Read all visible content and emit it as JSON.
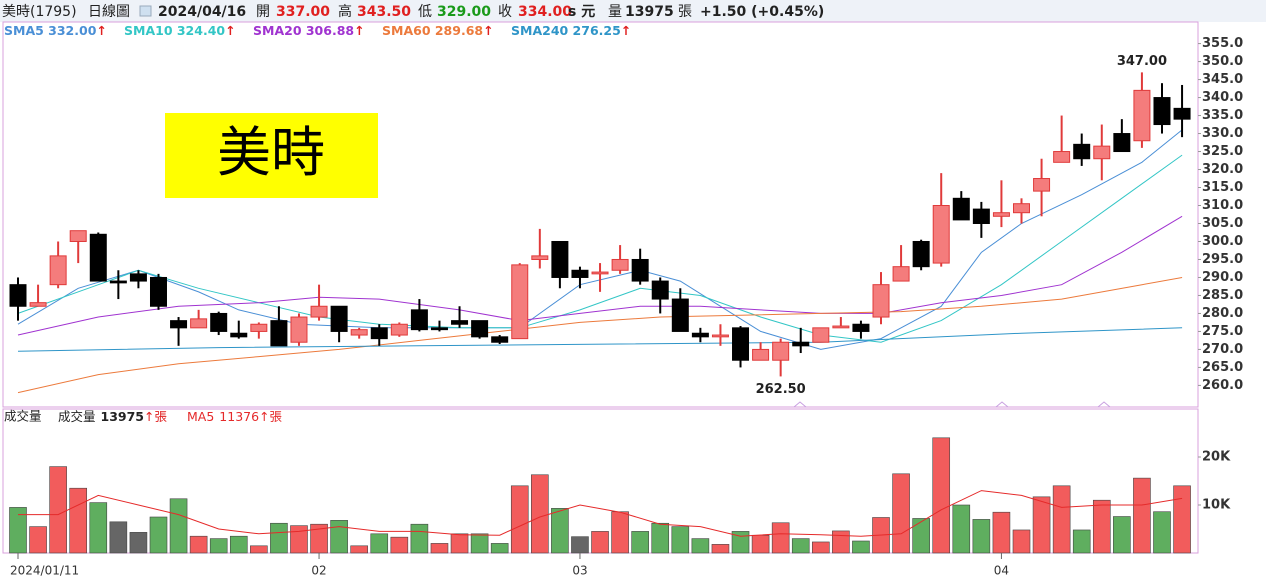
{
  "header": {
    "stock": "美時(1795)",
    "period": "日線圖",
    "date": "2024/04/16",
    "open_label": "開",
    "open": "337.00",
    "high_label": "高",
    "high": "343.50",
    "low_label": "低",
    "low": "329.00",
    "close_label": "收",
    "close": "334.00",
    "unit": "s 元",
    "volume_label": "量",
    "volume": "13975",
    "volume_unit": "張",
    "change": "+1.50 (+0.45%)"
  },
  "chart_data": [
    {
      "type": "candlestick",
      "watermark": "美時",
      "open": [
        288,
        282,
        288,
        300,
        302,
        289,
        291,
        290,
        278,
        276,
        280,
        274.5,
        275,
        278,
        272,
        279,
        282,
        274,
        276,
        274,
        281,
        276,
        278,
        278,
        273.5,
        273,
        295,
        300,
        292,
        291,
        292,
        295,
        289,
        284,
        274.5,
        273.5,
        276,
        267,
        267,
        272,
        272,
        276,
        277,
        279,
        289,
        300,
        294,
        312,
        309,
        307,
        308,
        314,
        322,
        327,
        323,
        330,
        328,
        340,
        337
      ],
      "high": [
        290,
        288,
        300,
        303,
        302.5,
        292,
        292,
        291,
        279,
        281,
        280.5,
        278,
        277.5,
        282,
        280,
        288,
        282,
        276,
        277,
        277.5,
        284,
        278,
        282,
        278,
        274,
        294,
        303.5,
        300,
        293,
        294,
        299,
        298,
        290,
        287,
        276,
        277,
        276.5,
        272,
        273,
        276,
        276,
        279,
        278,
        291.5,
        299,
        300.5,
        319,
        314,
        311,
        317,
        312,
        323,
        335,
        330,
        332.5,
        334,
        347,
        344,
        343.5
      ],
      "low": [
        278,
        282,
        287,
        294,
        289,
        284,
        287,
        281,
        271,
        276,
        274,
        273,
        273,
        271,
        271,
        278,
        272,
        273,
        271,
        273.5,
        275,
        275,
        276,
        273,
        271.5,
        273,
        292.5,
        287,
        287,
        286,
        291,
        288,
        280,
        275,
        272,
        271,
        265,
        267,
        262.5,
        269,
        272,
        276,
        273,
        277,
        289,
        292,
        293,
        306,
        301,
        304,
        305,
        307,
        322,
        321,
        317,
        325,
        326,
        330,
        329
      ],
      "close": [
        282,
        283,
        296,
        303,
        289,
        288.5,
        289,
        282,
        276,
        278.5,
        275,
        273.5,
        277,
        271,
        279,
        282,
        275,
        275.5,
        273,
        277,
        275.5,
        275.5,
        277,
        273.5,
        272,
        293.5,
        296,
        290,
        290,
        291.5,
        295,
        289,
        284,
        275,
        273.5,
        274,
        267,
        270,
        272,
        271,
        276,
        276.5,
        275,
        288,
        293,
        293,
        310,
        306,
        305,
        308,
        310.5,
        317.5,
        325,
        323,
        326.5,
        325,
        342,
        332.5,
        334
      ],
      "up_color": "#f47c7c",
      "up_edge": "#e03a3a",
      "down_color": "#000000",
      "series": [
        {
          "name": "SMA5",
          "legend": "SMA5 332.00",
          "trend": "↑",
          "color": "#4a8fd6",
          "x": [
            0,
            3,
            6,
            9,
            11,
            14,
            18,
            22,
            25,
            28,
            31,
            33,
            35,
            37,
            40,
            43,
            46,
            48,
            50,
            53,
            56,
            58
          ],
          "values": [
            277,
            287,
            292,
            286,
            281,
            277,
            276,
            276,
            276,
            288,
            292,
            289,
            282,
            275,
            270,
            273,
            282,
            297,
            305,
            313,
            322,
            331
          ]
        },
        {
          "name": "SMA10",
          "legend": "SMA10 324.40",
          "trend": "↑",
          "color": "#33c6c6",
          "x": [
            0,
            4,
            6,
            9,
            12,
            15,
            18,
            22,
            25,
            28,
            31,
            34,
            37,
            40,
            43,
            46,
            49,
            52,
            55,
            58
          ],
          "values": [
            280,
            288,
            292,
            287,
            283,
            279,
            277,
            276,
            276,
            281,
            287,
            285,
            279,
            274,
            272,
            278,
            288,
            300,
            312,
            324
          ]
        },
        {
          "name": "SMA20",
          "legend": "SMA20 306.88",
          "trend": "↑",
          "color": "#a033d0",
          "x": [
            0,
            4,
            8,
            12,
            15,
            18,
            22,
            25,
            28,
            31,
            34,
            37,
            40,
            43,
            46,
            49,
            52,
            55,
            58
          ],
          "values": [
            274,
            279,
            282,
            283,
            284.5,
            284,
            281,
            278,
            280,
            282,
            282,
            281,
            280,
            280,
            283,
            285,
            288,
            297,
            307
          ]
        },
        {
          "name": "SMA60",
          "legend": "SMA60 289.68",
          "trend": "↑",
          "color": "#ec7a3c",
          "x": [
            0,
            4,
            8,
            12,
            16,
            20,
            24,
            28,
            32,
            36,
            40,
            44,
            48,
            52,
            56,
            58
          ],
          "values": [
            258,
            263,
            266,
            268,
            270,
            272.5,
            275,
            277.5,
            279,
            279.5,
            280,
            280.5,
            282,
            284,
            288,
            290
          ]
        },
        {
          "name": "SMA240",
          "legend": "SMA240 276.25",
          "trend": "↑",
          "color": "#2f95c8",
          "x": [
            0,
            10,
            20,
            30,
            40,
            50,
            58
          ],
          "values": [
            269.5,
            270.5,
            271,
            271.5,
            272,
            274.5,
            276
          ]
        }
      ],
      "annotations": [
        {
          "text": "347.00",
          "x": 56,
          "value": 347
        },
        {
          "text": "262.50",
          "x": 38,
          "value": 262.5
        }
      ],
      "ylim": [
        254,
        361
      ],
      "yticks": [
        {
          "value": 260,
          "label": "260.0"
        },
        {
          "value": 265,
          "label": "265.0"
        },
        {
          "value": 270,
          "label": "270.0"
        },
        {
          "value": 275,
          "label": "275.0"
        },
        {
          "value": 280,
          "label": "280.0"
        },
        {
          "value": 285,
          "label": "285.0"
        },
        {
          "value": 290,
          "label": "290.0"
        },
        {
          "value": 295,
          "label": "295.0"
        },
        {
          "value": 300,
          "label": "300.0"
        },
        {
          "value": 305,
          "label": "305.0"
        },
        {
          "value": 310,
          "label": "310.0"
        },
        {
          "value": 315,
          "label": "315.0"
        },
        {
          "value": 320,
          "label": "320.0"
        },
        {
          "value": 325,
          "label": "325.0"
        },
        {
          "value": 330,
          "label": "330.0"
        },
        {
          "value": 335,
          "label": "335.0"
        },
        {
          "value": 340,
          "label": "340.0"
        },
        {
          "value": 345,
          "label": "345.0"
        },
        {
          "value": 350,
          "label": "350.0"
        },
        {
          "value": 355,
          "label": "355.0"
        }
      ]
    },
    {
      "type": "bar",
      "title": "成交量",
      "current_label": "成交量",
      "current_value": 13975,
      "current_unit": "↑張",
      "values": [
        9500,
        5500,
        18000,
        13500,
        10500,
        6500,
        4300,
        7500,
        11300,
        3500,
        3000,
        3500,
        1500,
        6200,
        5700,
        6000,
        6800,
        1500,
        4000,
        3300,
        6000,
        2000,
        4000,
        4000,
        2000,
        14000,
        16300,
        9300,
        3400,
        4500,
        8600,
        4500,
        6200,
        5500,
        3000,
        1800,
        4500,
        3700,
        6300,
        3000,
        2300,
        4600,
        2500,
        7400,
        16500,
        7200,
        24000,
        10000,
        7000,
        8500,
        4800,
        11700,
        14000,
        4800,
        11000,
        7600,
        15600,
        8600,
        14000
      ],
      "colors": [
        "#5fae5f",
        "#f25c5c",
        "#f25c5c",
        "#f25c5c",
        "#5fae5f",
        "#666666",
        "#666666",
        "#5fae5f",
        "#5fae5f",
        "#f25c5c",
        "#5fae5f",
        "#5fae5f",
        "#f25c5c",
        "#5fae5f",
        "#f25c5c",
        "#f25c5c",
        "#5fae5f",
        "#f25c5c",
        "#5fae5f",
        "#f25c5c",
        "#5fae5f",
        "#f25c5c",
        "#f25c5c",
        "#5fae5f",
        "#5fae5f",
        "#f25c5c",
        "#f25c5c",
        "#5fae5f",
        "#666666",
        "#f25c5c",
        "#f25c5c",
        "#5fae5f",
        "#5fae5f",
        "#5fae5f",
        "#5fae5f",
        "#f25c5c",
        "#5fae5f",
        "#f25c5c",
        "#f25c5c",
        "#5fae5f",
        "#f25c5c",
        "#f25c5c",
        "#5fae5f",
        "#f25c5c",
        "#f25c5c",
        "#5fae5f",
        "#f25c5c",
        "#5fae5f",
        "#5fae5f",
        "#f25c5c",
        "#f25c5c",
        "#f25c5c",
        "#f25c5c",
        "#5fae5f",
        "#f25c5c",
        "#5fae5f",
        "#f25c5c",
        "#5fae5f",
        "#f25c5c"
      ],
      "series": [
        {
          "name": "MA5",
          "legend_value": 11376,
          "legend_unit": "↑張",
          "color": "#e52a2a",
          "x": [
            0,
            2,
            4,
            6,
            8,
            10,
            12,
            14,
            16,
            18,
            20,
            22,
            24,
            26,
            28,
            30,
            32,
            34,
            36,
            38,
            40,
            42,
            44,
            46,
            48,
            50,
            52,
            54,
            56,
            58
          ],
          "values": [
            8000,
            8000,
            12000,
            10000,
            8000,
            5000,
            4000,
            4500,
            5500,
            4500,
            4500,
            3800,
            3700,
            7500,
            10000,
            8500,
            6000,
            5500,
            3500,
            4000,
            3800,
            3500,
            4000,
            9000,
            13000,
            12000,
            9500,
            10000,
            10000,
            11376
          ]
        }
      ],
      "ylim": [
        0,
        30000
      ],
      "yticks": [
        {
          "value": 10000,
          "label": "10K"
        },
        {
          "value": 20000,
          "label": "20K"
        }
      ],
      "xticks": [
        {
          "value": 0,
          "label": "2024/01/11"
        },
        {
          "value": 15,
          "label": "02"
        },
        {
          "value": 28,
          "label": "03"
        },
        {
          "value": 49,
          "label": "04"
        }
      ]
    }
  ]
}
